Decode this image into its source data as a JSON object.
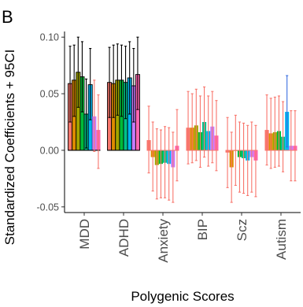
{
  "panel_label": "B",
  "chart_data": {
    "type": "bar",
    "title": "",
    "xlabel": "Polygenic Scores",
    "ylabel": "Standardized Coefficients + 95CI",
    "ylim": [
      -0.055,
      0.105
    ],
    "yticks": [
      -0.05,
      0.0,
      0.05,
      0.1
    ],
    "ytick_labels": [
      "-0.05",
      "0.00",
      "0.05",
      "0.10"
    ],
    "grid": false,
    "legend": "none",
    "categories": [
      "MDD",
      "ADHD",
      "Anxiety",
      "BIP",
      "Scz",
      "Autism"
    ],
    "bar_colors": [
      "#F8766D",
      "#DE8C00",
      "#A3A500",
      "#00BA38",
      "#00C08B",
      "#00B4F0",
      "#C77CFF",
      "#FF64B0"
    ],
    "significant_outline_color": "#000000",
    "nonsignificant_error_color": "#F8766D",
    "groups": [
      {
        "category": "MDD",
        "bars": [
          {
            "value": 0.059,
            "low": 0.025,
            "high": 0.092,
            "significant": true
          },
          {
            "value": 0.062,
            "low": 0.03,
            "high": 0.093,
            "significant": true
          },
          {
            "value": 0.069,
            "low": 0.038,
            "high": 0.1,
            "significant": true
          },
          {
            "value": 0.065,
            "low": 0.034,
            "high": 0.096,
            "significant": true
          },
          {
            "value": 0.032,
            "low": 0.002,
            "high": 0.063,
            "significant": true
          },
          {
            "value": 0.058,
            "low": 0.027,
            "high": 0.09,
            "significant": true
          },
          {
            "value": 0.03,
            "low": -0.001,
            "high": 0.062,
            "significant": false
          },
          {
            "value": 0.018,
            "low": -0.016,
            "high": 0.049,
            "significant": false
          }
        ]
      },
      {
        "category": "ADHD",
        "bars": [
          {
            "value": 0.06,
            "low": 0.029,
            "high": 0.091,
            "significant": true
          },
          {
            "value": 0.059,
            "low": 0.029,
            "high": 0.093,
            "significant": true
          },
          {
            "value": 0.062,
            "low": 0.031,
            "high": 0.094,
            "significant": true
          },
          {
            "value": 0.062,
            "low": 0.03,
            "high": 0.093,
            "significant": true
          },
          {
            "value": 0.06,
            "low": 0.028,
            "high": 0.092,
            "significant": true
          },
          {
            "value": 0.064,
            "low": 0.032,
            "high": 0.096,
            "significant": true
          },
          {
            "value": 0.057,
            "low": 0.025,
            "high": 0.09,
            "significant": true
          },
          {
            "value": 0.067,
            "low": 0.036,
            "high": 0.1,
            "significant": true
          }
        ]
      },
      {
        "category": "Anxiety",
        "bars": [
          {
            "value": 0.009,
            "low": -0.02,
            "high": 0.039,
            "significant": false
          },
          {
            "value": -0.006,
            "low": -0.036,
            "high": 0.025,
            "significant": false
          },
          {
            "value": -0.013,
            "low": -0.043,
            "high": 0.019,
            "significant": false
          },
          {
            "value": -0.012,
            "low": -0.042,
            "high": 0.018,
            "significant": false
          },
          {
            "value": -0.011,
            "low": -0.042,
            "high": 0.021,
            "significant": false
          },
          {
            "value": -0.012,
            "low": -0.044,
            "high": 0.02,
            "significant": false
          },
          {
            "value": -0.015,
            "low": -0.046,
            "high": 0.016,
            "significant": false
          },
          {
            "value": 0.004,
            "low": -0.027,
            "high": 0.036,
            "significant": false
          }
        ]
      },
      {
        "category": "BIP",
        "bars": [
          {
            "value": 0.02,
            "low": -0.012,
            "high": 0.052,
            "significant": false
          },
          {
            "value": 0.02,
            "low": -0.011,
            "high": 0.05,
            "significant": false
          },
          {
            "value": 0.022,
            "low": -0.009,
            "high": 0.054,
            "significant": false
          },
          {
            "value": 0.016,
            "low": -0.015,
            "high": 0.048,
            "significant": false
          },
          {
            "value": 0.025,
            "low": -0.006,
            "high": 0.056,
            "significant": false
          },
          {
            "value": 0.017,
            "low": -0.014,
            "high": 0.048,
            "significant": false
          },
          {
            "value": 0.021,
            "low": -0.011,
            "high": 0.052,
            "significant": false
          },
          {
            "value": 0.013,
            "low": -0.018,
            "high": 0.044,
            "significant": false
          }
        ]
      },
      {
        "category": "Scz",
        "bars": [
          {
            "value": -0.002,
            "low": -0.033,
            "high": 0.029,
            "significant": false
          },
          {
            "value": -0.015,
            "low": -0.046,
            "high": 0.016,
            "significant": false
          },
          {
            "value": 0.0,
            "low": -0.031,
            "high": 0.031,
            "significant": false
          },
          {
            "value": -0.006,
            "low": -0.037,
            "high": 0.025,
            "significant": false
          },
          {
            "value": -0.007,
            "low": -0.038,
            "high": 0.024,
            "significant": false
          },
          {
            "value": -0.009,
            "low": -0.04,
            "high": 0.022,
            "significant": false
          },
          {
            "value": -0.006,
            "low": -0.037,
            "high": 0.025,
            "significant": false
          },
          {
            "value": -0.009,
            "low": -0.041,
            "high": 0.022,
            "significant": false
          }
        ]
      },
      {
        "category": "Autism",
        "bars": [
          {
            "value": 0.018,
            "low": -0.013,
            "high": 0.049,
            "significant": false
          },
          {
            "value": 0.015,
            "low": -0.016,
            "high": 0.046,
            "significant": false
          },
          {
            "value": 0.016,
            "low": -0.015,
            "high": 0.047,
            "significant": false
          },
          {
            "value": 0.017,
            "low": -0.014,
            "high": 0.048,
            "significant": false
          },
          {
            "value": 0.012,
            "low": -0.019,
            "high": 0.043,
            "significant": false
          },
          {
            "value": 0.034,
            "low": 0.003,
            "high": 0.066,
            "significant": false
          },
          {
            "value": 0.004,
            "low": -0.027,
            "high": 0.035,
            "significant": false
          },
          {
            "value": 0.004,
            "low": -0.027,
            "high": 0.035,
            "significant": false
          }
        ]
      }
    ]
  }
}
